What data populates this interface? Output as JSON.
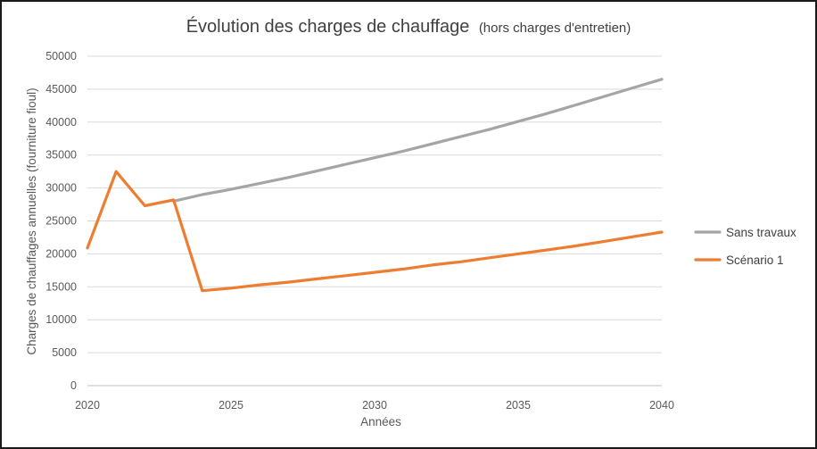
{
  "chart_data": {
    "type": "line",
    "title": "Évolution des charges de chauffage",
    "subtitle": "(hors charges d'entretien)",
    "xlabel": "Années",
    "ylabel": "Charges de chauffages annuelles (fourniture fioul)",
    "xlim": [
      2020,
      2040
    ],
    "ylim": [
      0,
      50000
    ],
    "x_ticks": [
      "2020",
      "2025",
      "2030",
      "2035",
      "2040"
    ],
    "y_ticks": [
      "0",
      "5000",
      "10000",
      "15000",
      "20000",
      "25000",
      "30000",
      "35000",
      "40000",
      "45000",
      "50000"
    ],
    "grid": true,
    "legend_position": "right",
    "x": [
      2020,
      2021,
      2022,
      2023,
      2024,
      2025,
      2026,
      2027,
      2028,
      2029,
      2030,
      2031,
      2032,
      2033,
      2034,
      2035,
      2036,
      2037,
      2038,
      2039,
      2040
    ],
    "series": [
      {
        "name": "Sans travaux",
        "color": "#a5a5a5",
        "values": [
          null,
          null,
          null,
          28000,
          29000,
          29800,
          30700,
          31600,
          32600,
          33600,
          34600,
          35600,
          36700,
          37800,
          38900,
          40100,
          41300,
          42600,
          43900,
          45200,
          46500
        ]
      },
      {
        "name": "Scénario 1",
        "color": "#ed7d31",
        "values": [
          20900,
          32500,
          27300,
          28200,
          14400,
          14800,
          15300,
          15700,
          16200,
          16700,
          17200,
          17700,
          18300,
          18800,
          19400,
          20000,
          20600,
          21200,
          21900,
          22600,
          23300
        ]
      }
    ]
  }
}
